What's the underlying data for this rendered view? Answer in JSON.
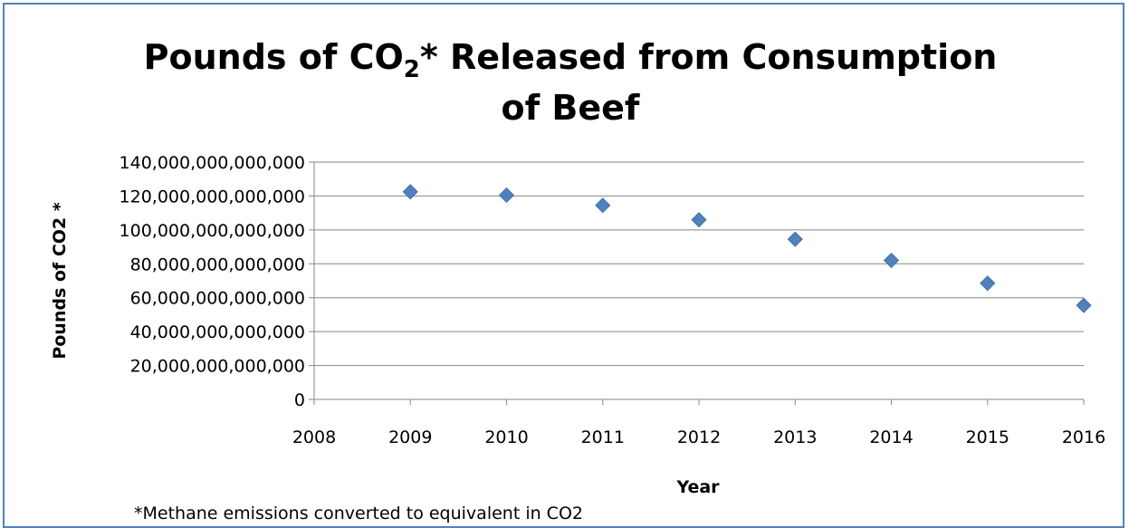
{
  "chart_data": {
    "type": "scatter",
    "title_line1_main": "Pounds of CO",
    "title_line1_sub": "2",
    "title_line1_rest": "* Released from Consumption",
    "title_line2": "of Beef",
    "xlabel": "Year",
    "ylabel": "Pounds of CO2 *",
    "footnote": "*Methane emissions converted to equivalent in CO2",
    "xlim": [
      2008,
      2016
    ],
    "ylim": [
      0,
      140000000000000
    ],
    "x_ticks": [
      2008,
      2009,
      2010,
      2011,
      2012,
      2013,
      2014,
      2015,
      2016
    ],
    "x_tick_labels": [
      "2008",
      "2009",
      "2010",
      "2011",
      "2012",
      "2013",
      "2014",
      "2015",
      "2016"
    ],
    "y_ticks": [
      0,
      20000000000000,
      40000000000000,
      60000000000000,
      80000000000000,
      100000000000000,
      120000000000000,
      140000000000000
    ],
    "y_tick_labels": [
      "0",
      "20,000,000,000,000",
      "40,000,000,000,000",
      "60,000,000,000,000",
      "80,000,000,000,000",
      "100,000,000,000,000",
      "120,000,000,000,000",
      "140,000,000,000,000"
    ],
    "grid": true,
    "legend": "none",
    "marker": "diamond",
    "color": "#4f81bd",
    "series": [
      {
        "x": [
          2009,
          2010,
          2011,
          2012,
          2013,
          2014,
          2015,
          2016
        ],
        "y": [
          122500000000000,
          120500000000000,
          114500000000000,
          106000000000000,
          94500000000000,
          82000000000000,
          68500000000000,
          55500000000000
        ]
      }
    ]
  }
}
